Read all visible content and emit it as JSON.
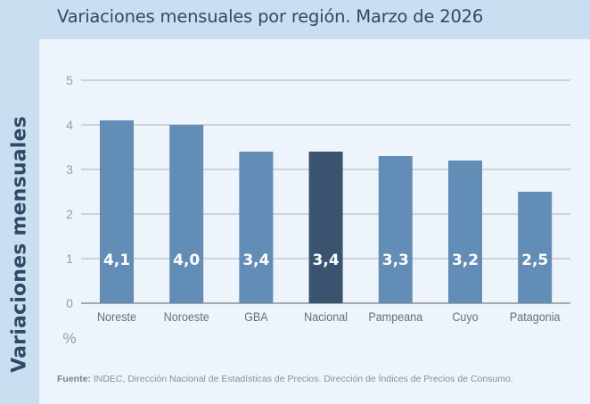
{
  "title": "Variaciones mensuales por región. Marzo de 2026",
  "colors": {
    "bar": "#628db7",
    "bar_highlight": "#3a546f",
    "grid": "#bdbdbd",
    "axis": "#a9a9a9",
    "tick_text": "#9b9b9b",
    "cat_text": "#6a6f75",
    "label_text": "#ffffff"
  },
  "chart_data": {
    "type": "bar",
    "title": "Variaciones mensuales por región. Marzo de 2026",
    "xlabel": "",
    "ylabel": "Variaciones mensuales",
    "yunit": "%",
    "ylim": [
      0,
      5
    ],
    "yticks": [
      0,
      1,
      2,
      3,
      4,
      5
    ],
    "grid": true,
    "legend": "none",
    "categories": [
      "Noreste",
      "Noroeste",
      "GBA",
      "Nacional",
      "Pampeana",
      "Cuyo",
      "Patagonia"
    ],
    "values": [
      4.1,
      4.0,
      3.4,
      3.4,
      3.3,
      3.2,
      2.5
    ],
    "data_labels": [
      "4,1",
      "4,0",
      "3,4",
      "3,4",
      "3,3",
      "3,2",
      "2,5"
    ],
    "highlight": [
      "Nacional"
    ]
  },
  "source": {
    "label": "Fuente:",
    "text": " INDEC, Dirección Nacional de Estadísticas de Precios. Dirección de Índices de Precios de Consumo."
  }
}
